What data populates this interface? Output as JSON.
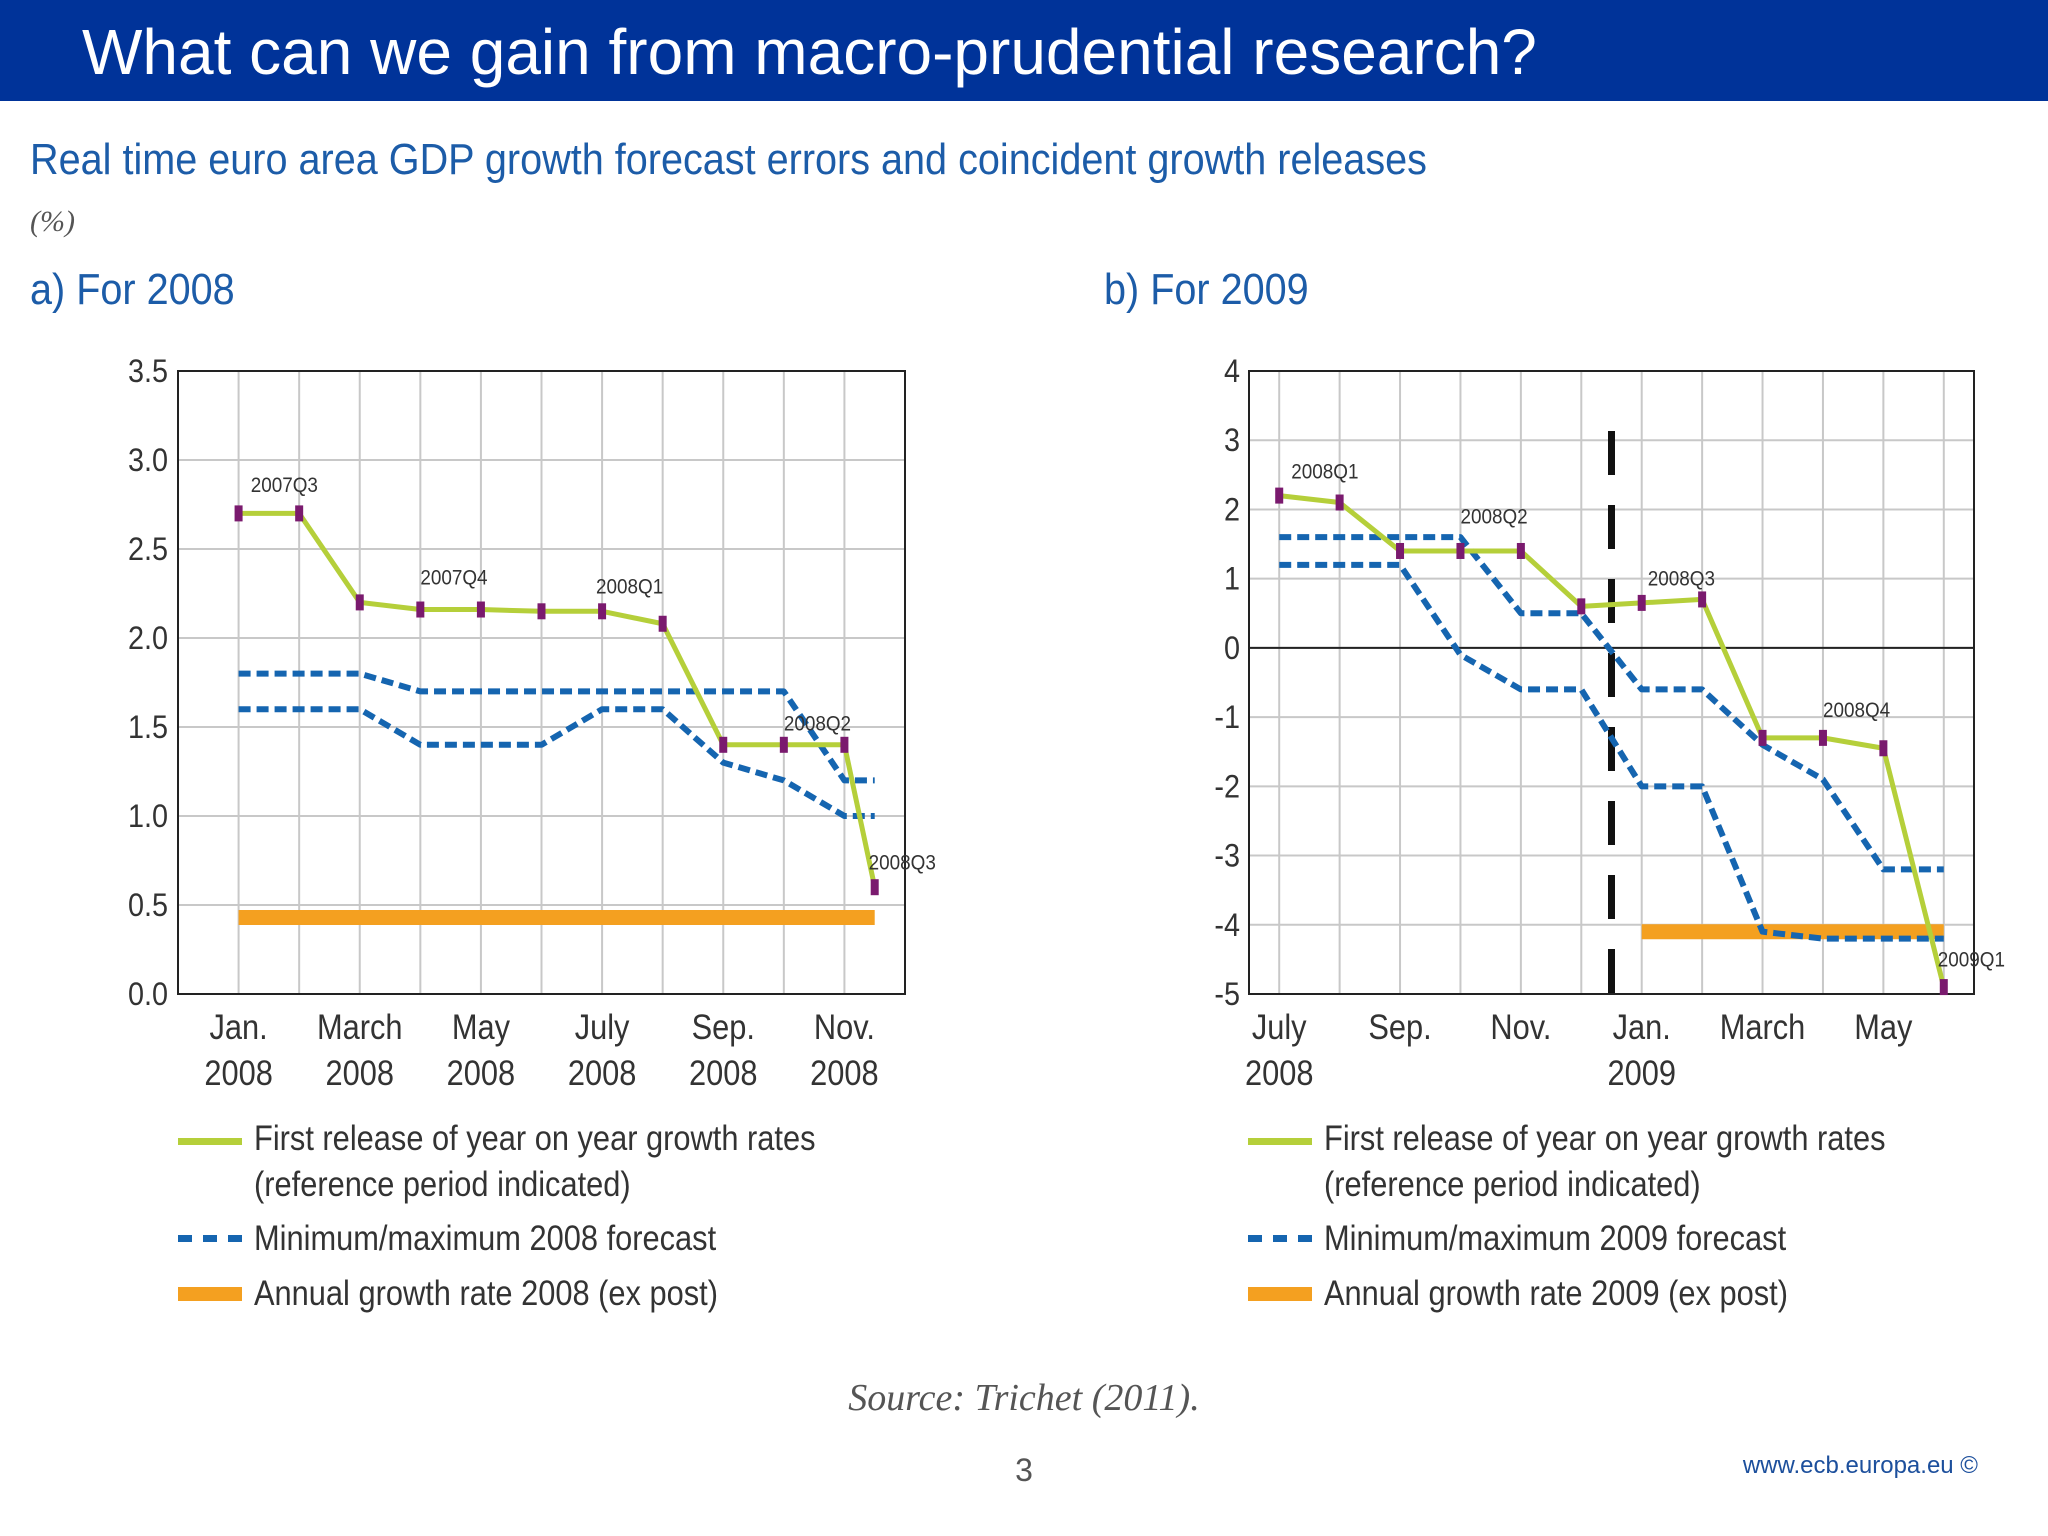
{
  "slide": {
    "title": "What can we gain from macro-prudential research?",
    "figure_title": "Real time euro area GDP growth forecast errors and coincident growth releases",
    "unit": "(%)",
    "source": "Source: Trichet (2011).",
    "page_number": "3",
    "website": "www.ecb.europa.eu ©"
  },
  "colors": {
    "header": "#003399",
    "first_release": "#b5cf3a",
    "first_release_marker": "#7a1a6e",
    "forecast_minmax": "#1565b0",
    "annual_growth": "#f4a020",
    "title_text": "#1c5ca8"
  },
  "chart_data": [
    {
      "type": "line",
      "panel_title": "a) For 2008",
      "x_tick_labels": [
        [
          "Jan.",
          "2008"
        ],
        [
          "March",
          "2008"
        ],
        [
          "May",
          "2008"
        ],
        [
          "July",
          "2008"
        ],
        [
          "Sep.",
          "2008"
        ],
        [
          "Nov.",
          "2008"
        ]
      ],
      "x_ticks_at": [
        0,
        2,
        4,
        6,
        8,
        10
      ],
      "xlim": [
        -1,
        11
      ],
      "ylim": [
        0,
        3.5
      ],
      "y_ticks": [
        "0.0",
        "0.5",
        "1.0",
        "1.5",
        "2.0",
        "2.5",
        "3.0",
        "3.5"
      ],
      "zero_line": false,
      "grid": true,
      "series": [
        {
          "name": "First release of year on year growth rates (reference period indicated)",
          "style": "first_release",
          "points": [
            [
              0,
              2.7
            ],
            [
              1,
              2.7
            ],
            [
              2,
              2.2
            ],
            [
              3,
              2.16
            ],
            [
              4,
              2.16
            ],
            [
              5,
              2.15
            ],
            [
              6,
              2.15
            ],
            [
              7,
              2.08
            ],
            [
              8,
              1.4
            ],
            [
              9,
              1.4
            ],
            [
              10,
              1.4
            ],
            [
              10.5,
              0.6
            ]
          ],
          "markers": [
            0,
            1,
            2,
            3,
            4,
            5,
            6,
            7,
            8,
            9,
            10,
            11
          ]
        },
        {
          "name": "Minimum/maximum 2008 forecast",
          "style": "forecast_max",
          "points": [
            [
              0,
              1.8
            ],
            [
              2,
              1.8
            ],
            [
              3,
              1.7
            ],
            [
              9,
              1.7
            ],
            [
              10,
              1.2
            ],
            [
              10.5,
              1.2
            ]
          ]
        },
        {
          "name": "Minimum/maximum 2008 forecast",
          "style": "forecast_min",
          "points": [
            [
              0,
              1.6
            ],
            [
              2,
              1.6
            ],
            [
              3,
              1.4
            ],
            [
              5,
              1.4
            ],
            [
              6,
              1.6
            ],
            [
              7,
              1.6
            ],
            [
              8,
              1.3
            ],
            [
              9,
              1.2
            ],
            [
              10,
              1.0
            ],
            [
              10.5,
              1.0
            ]
          ]
        },
        {
          "name": "Annual growth rate 2008 (ex post)",
          "style": "annual",
          "points": [
            [
              0,
              0.43
            ],
            [
              10.5,
              0.43
            ]
          ]
        }
      ],
      "annotations": [
        {
          "text": "2007Q3",
          "x": 0.2,
          "y": 2.82
        },
        {
          "text": "2007Q4",
          "x": 3.0,
          "y": 2.3
        },
        {
          "text": "2008Q1",
          "x": 5.9,
          "y": 2.25
        },
        {
          "text": "2008Q2",
          "x": 9.0,
          "y": 1.48
        },
        {
          "text": "2008Q3",
          "x": 10.4,
          "y": 0.7
        }
      ],
      "legend": [
        {
          "style": "first_release",
          "lines": [
            "First release of year on year growth rates",
            "(reference period indicated)"
          ]
        },
        {
          "style": "forecast",
          "lines": [
            "Minimum/maximum 2008 forecast"
          ]
        },
        {
          "style": "annual",
          "lines": [
            "Annual growth rate 2008 (ex post)"
          ]
        }
      ]
    },
    {
      "type": "line",
      "panel_title": "b) For 2009",
      "x_tick_labels": [
        [
          "July",
          "2008"
        ],
        [
          "Sep.",
          ""
        ],
        [
          "Nov.",
          ""
        ],
        [
          "Jan.",
          "2009"
        ],
        [
          "March",
          ""
        ],
        [
          "May",
          ""
        ]
      ],
      "x_ticks_at": [
        0,
        2,
        4,
        6,
        8,
        10
      ],
      "xlim": [
        -0.5,
        11.5
      ],
      "ylim": [
        -5,
        4
      ],
      "y_ticks": [
        "-5",
        "-4",
        "-3",
        "-2",
        "-1",
        "0",
        "1",
        "2",
        "3",
        "4"
      ],
      "zero_line": true,
      "grid": true,
      "divider_x": 5.5,
      "series": [
        {
          "name": "First release of year on year growth rates (reference period indicated)",
          "style": "first_release",
          "points": [
            [
              0,
              2.2
            ],
            [
              1,
              2.1
            ],
            [
              2,
              1.4
            ],
            [
              3,
              1.4
            ],
            [
              4,
              1.4
            ],
            [
              5,
              0.6
            ],
            [
              6,
              0.65
            ],
            [
              7,
              0.7
            ],
            [
              8,
              -1.3
            ],
            [
              9,
              -1.3
            ],
            [
              10,
              -1.45
            ],
            [
              11,
              -4.9
            ]
          ],
          "markers": [
            0,
            1,
            2,
            3,
            4,
            5,
            6,
            7,
            8,
            9,
            10,
            11
          ]
        },
        {
          "name": "Minimum/maximum 2009 forecast",
          "style": "forecast_max",
          "points": [
            [
              0,
              1.6
            ],
            [
              3,
              1.6
            ],
            [
              4,
              0.5
            ],
            [
              5,
              0.5
            ],
            [
              6,
              -0.6
            ],
            [
              7,
              -0.6
            ],
            [
              8,
              -1.4
            ],
            [
              9,
              -1.9
            ],
            [
              10,
              -3.2
            ],
            [
              11,
              -3.2
            ]
          ]
        },
        {
          "name": "Minimum/maximum 2009 forecast",
          "style": "forecast_min",
          "points": [
            [
              0,
              1.2
            ],
            [
              2,
              1.2
            ],
            [
              3,
              -0.1
            ],
            [
              4,
              -0.6
            ],
            [
              5,
              -0.6
            ],
            [
              6,
              -2.0
            ],
            [
              7,
              -2.0
            ],
            [
              8,
              -4.1
            ],
            [
              9,
              -4.2
            ],
            [
              11,
              -4.2
            ]
          ]
        },
        {
          "name": "Annual growth rate 2009 (ex post)",
          "style": "annual",
          "points": [
            [
              6,
              -4.1
            ],
            [
              11,
              -4.1
            ]
          ]
        }
      ],
      "annotations": [
        {
          "text": "2008Q1",
          "x": 0.2,
          "y": 2.45
        },
        {
          "text": "2008Q2",
          "x": 3.0,
          "y": 1.8
        },
        {
          "text": "2008Q3",
          "x": 6.1,
          "y": 0.9
        },
        {
          "text": "2008Q4",
          "x": 9.0,
          "y": -1.0
        },
        {
          "text": "2009Q1",
          "x": 10.9,
          "y": -4.6
        }
      ],
      "legend": [
        {
          "style": "first_release",
          "lines": [
            "First release of year on year growth rates",
            "(reference period indicated)"
          ]
        },
        {
          "style": "forecast",
          "lines": [
            "Minimum/maximum 2009 forecast"
          ]
        },
        {
          "style": "annual",
          "lines": [
            "Annual growth rate 2009 (ex post)"
          ]
        }
      ]
    }
  ]
}
